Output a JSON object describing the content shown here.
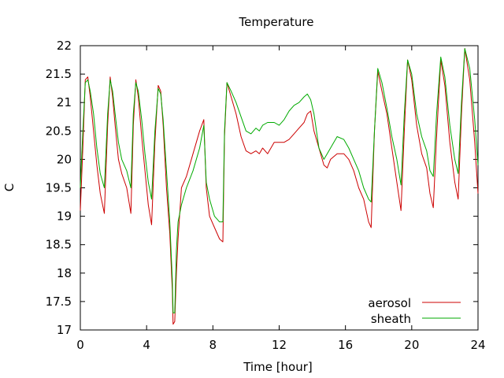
{
  "chart_data": {
    "type": "line",
    "title": "Temperature",
    "xlabel": "Time [hour]",
    "ylabel": "C",
    "xlim": [
      0,
      24
    ],
    "ylim": [
      17,
      22
    ],
    "xticks": [
      "0",
      "4",
      "8",
      "12",
      "16",
      "20",
      "24"
    ],
    "yticks": [
      "17",
      "17.5",
      "18",
      "18.5",
      "19",
      "19.5",
      "20",
      "20.5",
      "21",
      "21.5",
      "22"
    ],
    "grid": false,
    "legend_position": "bottom-right",
    "series": [
      {
        "name": "aerosol",
        "color": "#cc0000",
        "x": [
          0,
          0.15,
          0.3,
          0.45,
          0.6,
          0.8,
          1.0,
          1.2,
          1.45,
          1.65,
          1.8,
          1.95,
          2.1,
          2.3,
          2.5,
          2.8,
          3.05,
          3.2,
          3.35,
          3.5,
          3.7,
          3.9,
          4.1,
          4.3,
          4.5,
          4.7,
          4.85,
          5.0,
          5.2,
          5.4,
          5.55,
          5.6,
          5.7,
          5.8,
          5.9,
          6.1,
          6.4,
          6.8,
          7.2,
          7.45,
          7.6,
          7.8,
          8.1,
          8.4,
          8.6,
          8.7,
          8.85,
          9.1,
          9.4,
          9.7,
          10.0,
          10.3,
          10.6,
          10.8,
          11.0,
          11.3,
          11.7,
          12.0,
          12.3,
          12.6,
          12.9,
          13.2,
          13.5,
          13.7,
          13.9,
          14.1,
          14.4,
          14.7,
          14.9,
          15.1,
          15.5,
          15.9,
          16.2,
          16.5,
          16.8,
          17.1,
          17.4,
          17.55,
          17.75,
          17.95,
          18.2,
          18.5,
          18.8,
          19.1,
          19.35,
          19.55,
          19.75,
          20.0,
          20.3,
          20.6,
          20.9,
          21.1,
          21.3,
          21.5,
          21.75,
          22.0,
          22.3,
          22.6,
          22.8,
          23.0,
          23.2,
          23.5,
          23.8,
          24.0
        ],
        "y": [
          19.1,
          20.2,
          21.4,
          21.45,
          21.1,
          20.5,
          19.9,
          19.4,
          19.05,
          20.6,
          21.45,
          21.1,
          20.6,
          20.0,
          19.75,
          19.5,
          19.05,
          20.6,
          21.4,
          21.1,
          20.4,
          19.8,
          19.2,
          18.85,
          20.3,
          21.3,
          21.2,
          20.6,
          19.5,
          18.7,
          17.7,
          17.1,
          17.15,
          18.0,
          18.6,
          19.5,
          19.7,
          20.1,
          20.5,
          20.7,
          19.5,
          19.0,
          18.8,
          18.6,
          18.55,
          20.4,
          21.35,
          21.1,
          20.8,
          20.4,
          20.15,
          20.1,
          20.15,
          20.1,
          20.2,
          20.1,
          20.3,
          20.3,
          20.3,
          20.35,
          20.45,
          20.55,
          20.65,
          20.8,
          20.85,
          20.5,
          20.2,
          19.9,
          19.85,
          20.0,
          20.1,
          20.1,
          20.0,
          19.8,
          19.5,
          19.3,
          18.9,
          18.8,
          20.5,
          21.55,
          21.2,
          20.8,
          20.2,
          19.6,
          19.1,
          20.5,
          21.75,
          21.4,
          20.6,
          20.1,
          19.85,
          19.4,
          19.15,
          20.4,
          21.75,
          21.3,
          20.3,
          19.6,
          19.3,
          20.8,
          21.95,
          21.4,
          20.3,
          19.4
        ]
      },
      {
        "name": "sheath",
        "color": "#00aa00",
        "x": [
          0,
          0.15,
          0.3,
          0.45,
          0.6,
          0.8,
          1.0,
          1.2,
          1.45,
          1.65,
          1.8,
          1.95,
          2.1,
          2.3,
          2.5,
          2.8,
          3.05,
          3.2,
          3.35,
          3.5,
          3.7,
          3.9,
          4.1,
          4.3,
          4.5,
          4.7,
          4.85,
          5.0,
          5.2,
          5.4,
          5.55,
          5.6,
          5.7,
          5.8,
          5.9,
          6.1,
          6.4,
          6.8,
          7.2,
          7.45,
          7.6,
          7.8,
          8.1,
          8.4,
          8.6,
          8.7,
          8.85,
          9.1,
          9.4,
          9.7,
          10.0,
          10.3,
          10.6,
          10.8,
          11.0,
          11.3,
          11.7,
          12.0,
          12.3,
          12.6,
          12.9,
          13.2,
          13.5,
          13.7,
          13.9,
          14.1,
          14.4,
          14.7,
          14.9,
          15.1,
          15.5,
          15.9,
          16.2,
          16.5,
          16.8,
          17.1,
          17.4,
          17.55,
          17.75,
          17.95,
          18.2,
          18.5,
          18.8,
          19.1,
          19.35,
          19.55,
          19.75,
          20.0,
          20.3,
          20.6,
          20.9,
          21.1,
          21.3,
          21.5,
          21.75,
          22.0,
          22.3,
          22.6,
          22.8,
          23.0,
          23.2,
          23.5,
          23.8,
          24.0
        ],
        "y": [
          19.5,
          20.5,
          21.35,
          21.4,
          21.2,
          20.8,
          20.2,
          19.75,
          19.5,
          20.8,
          21.4,
          21.2,
          20.8,
          20.3,
          20.0,
          19.8,
          19.5,
          20.8,
          21.35,
          21.2,
          20.7,
          20.1,
          19.6,
          19.3,
          20.5,
          21.25,
          21.15,
          20.7,
          19.8,
          18.9,
          17.9,
          17.3,
          17.3,
          18.4,
          18.9,
          19.2,
          19.5,
          19.8,
          20.2,
          20.6,
          19.6,
          19.3,
          19.0,
          18.9,
          18.9,
          20.5,
          21.35,
          21.2,
          21.0,
          20.75,
          20.5,
          20.45,
          20.55,
          20.5,
          20.6,
          20.65,
          20.65,
          20.6,
          20.7,
          20.85,
          20.95,
          21.0,
          21.1,
          21.15,
          21.05,
          20.8,
          20.2,
          20.0,
          20.1,
          20.2,
          20.4,
          20.35,
          20.2,
          20.0,
          19.8,
          19.5,
          19.3,
          19.25,
          20.5,
          21.6,
          21.35,
          20.9,
          20.4,
          20.0,
          19.55,
          20.8,
          21.75,
          21.5,
          20.8,
          20.4,
          20.15,
          19.8,
          19.7,
          20.8,
          21.8,
          21.45,
          20.6,
          20.0,
          19.75,
          21.0,
          21.95,
          21.6,
          20.7,
          19.9
        ]
      }
    ]
  }
}
